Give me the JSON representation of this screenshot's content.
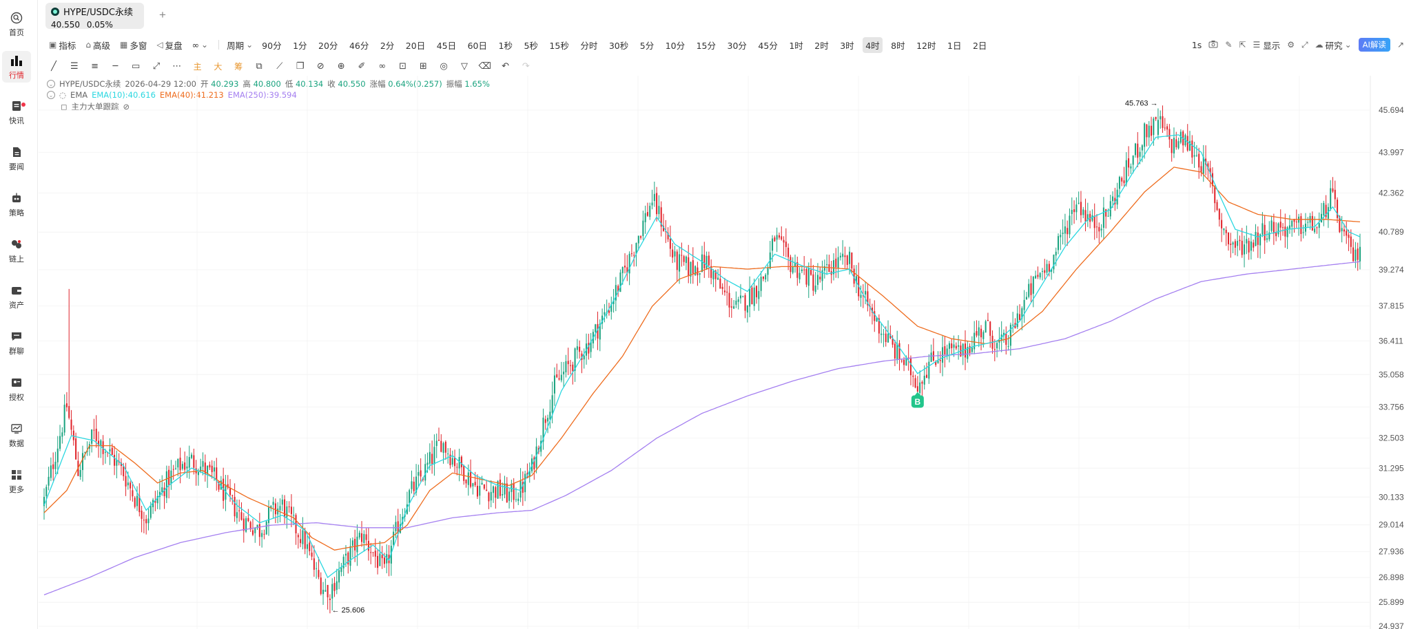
{
  "sidebar": {
    "items": [
      {
        "label": "首页",
        "icon": "search-home-icon"
      },
      {
        "label": "行情",
        "icon": "bar-chart-icon",
        "active": true
      },
      {
        "label": "快讯",
        "icon": "news-flash-icon",
        "badge": true
      },
      {
        "label": "要闻",
        "icon": "document-icon"
      },
      {
        "label": "策略",
        "icon": "robot-icon"
      },
      {
        "label": "链上",
        "icon": "onchain-icon"
      },
      {
        "label": "资产",
        "icon": "wallet-icon"
      },
      {
        "label": "群聊",
        "icon": "chat-icon"
      },
      {
        "label": "授权",
        "icon": "authorize-icon"
      },
      {
        "label": "数据",
        "icon": "data-monitor-icon"
      },
      {
        "label": "更多",
        "icon": "grid-more-icon"
      }
    ]
  },
  "tab": {
    "symbol": "HYPE/USDC永续",
    "price": "40.550",
    "change": "0.05%",
    "add": "+"
  },
  "toolbar": {
    "indicators": "指标",
    "advanced": "高级",
    "multi_window": "多窗",
    "replay": "复盘",
    "mode_icon": "∞",
    "period_label": "周期",
    "periods": [
      "90分",
      "1分",
      "20分",
      "46分",
      "2分",
      "20日",
      "45日",
      "60日",
      "1秒",
      "5秒",
      "15秒",
      "分时",
      "30秒",
      "5分",
      "10分",
      "15分",
      "30分",
      "45分",
      "1时",
      "2时",
      "3时",
      "4时",
      "8时",
      "12时",
      "1日",
      "2日"
    ],
    "active_period": "4时",
    "right": {
      "interval": "1s",
      "display": "显示",
      "research": "研究",
      "ai": "AI解读"
    }
  },
  "drawing_tools": {
    "tools": [
      "trend-line",
      "horizontal-lines",
      "parallel-channel",
      "horizontal-ray",
      "rectangle",
      "arrow-line",
      "more",
      "主",
      "大",
      "筹",
      "compare",
      "ruler-tool",
      "copy",
      "measure",
      "zoom-in",
      "brush",
      "link",
      "lock",
      "screenshot",
      "alert",
      "magnet",
      "filter",
      "trash",
      "undo",
      "redo"
    ],
    "labels": {
      "main": "主",
      "big": "大",
      "chips": "筹"
    }
  },
  "legend": {
    "symbol": "HYPE/USDC永续",
    "time": "2026-04-29 12:00",
    "open_label": "开",
    "open": "40.293",
    "high_label": "高",
    "high": "40.800",
    "low_label": "低",
    "low": "40.134",
    "close_label": "收",
    "close": "40.550",
    "change_label": "涨幅",
    "change": "0.64%(0.257)",
    "amp_label": "振幅",
    "amp": "1.65%",
    "ema_name": "EMA",
    "ema10": "EMA(10):40.616",
    "ema40": "EMA(40):41.213",
    "ema250": "EMA(250):39.594",
    "tracker": "主力大单跟踪"
  },
  "colors": {
    "up": "#1aa37f",
    "down": "#e0242b",
    "ema10": "#2ad7e0",
    "ema40": "#ee6c1e",
    "ema250": "#a47ff0",
    "buy_marker": "#22c58b"
  },
  "chart_data": {
    "type": "candlestick",
    "y_ticks": [
      "45.694",
      "43.997",
      "42.362",
      "40.789",
      "39.274",
      "37.815",
      "36.411",
      "35.058",
      "33.756",
      "32.503",
      "31.295",
      "30.133",
      "29.014",
      "27.936",
      "26.898",
      "25.899",
      "24.937"
    ],
    "y_range": [
      24.937,
      46.2
    ],
    "high_marker": "45.763 →",
    "low_marker": "← 25.606",
    "buy_label": "B",
    "close_anchors": [
      [
        0,
        30.0
      ],
      [
        10,
        33.8
      ],
      [
        15,
        31.2
      ],
      [
        22,
        32.7
      ],
      [
        28,
        32.0
      ],
      [
        35,
        31.1
      ],
      [
        40,
        30.1
      ],
      [
        45,
        29.3
      ],
      [
        50,
        30.1
      ],
      [
        55,
        30.9
      ],
      [
        60,
        31.4
      ],
      [
        65,
        31.6
      ],
      [
        70,
        31.3
      ],
      [
        75,
        30.9
      ],
      [
        80,
        30.2
      ],
      [
        88,
        29.2
      ],
      [
        95,
        28.8
      ],
      [
        100,
        29.5
      ],
      [
        105,
        29.8
      ],
      [
        110,
        29.0
      ],
      [
        115,
        28.3
      ],
      [
        120,
        27.0
      ],
      [
        125,
        26.2
      ],
      [
        130,
        27.1
      ],
      [
        135,
        27.9
      ],
      [
        140,
        28.6
      ],
      [
        145,
        27.9
      ],
      [
        150,
        27.1
      ],
      [
        155,
        28.7
      ],
      [
        160,
        30.1
      ],
      [
        168,
        31.2
      ],
      [
        175,
        32.4
      ],
      [
        180,
        31.7
      ],
      [
        185,
        31.2
      ],
      [
        190,
        30.6
      ],
      [
        195,
        30.4
      ],
      [
        200,
        30.4
      ],
      [
        205,
        30.2
      ],
      [
        210,
        30.4
      ],
      [
        215,
        31.3
      ],
      [
        220,
        33.1
      ],
      [
        225,
        34.6
      ],
      [
        232,
        35.5
      ],
      [
        240,
        36.3
      ],
      [
        248,
        37.6
      ],
      [
        255,
        39.0
      ],
      [
        262,
        40.7
      ],
      [
        268,
        42.1
      ],
      [
        272,
        41.3
      ],
      [
        278,
        39.6
      ],
      [
        285,
        39.3
      ],
      [
        292,
        39.6
      ],
      [
        298,
        38.5
      ],
      [
        305,
        37.7
      ],
      [
        312,
        38.3
      ],
      [
        318,
        39.1
      ],
      [
        322,
        40.6
      ],
      [
        328,
        39.6
      ],
      [
        335,
        39.1
      ],
      [
        340,
        38.7
      ],
      [
        348,
        39.5
      ],
      [
        355,
        39.6
      ],
      [
        360,
        38.3
      ],
      [
        368,
        37.0
      ],
      [
        375,
        36.0
      ],
      [
        382,
        35.2
      ],
      [
        385,
        34.7
      ],
      [
        390,
        35.5
      ],
      [
        395,
        35.9
      ],
      [
        400,
        36.0
      ],
      [
        405,
        35.9
      ],
      [
        410,
        36.6
      ],
      [
        415,
        37.0
      ],
      [
        420,
        36.2
      ],
      [
        425,
        36.4
      ],
      [
        430,
        37.6
      ],
      [
        438,
        39.0
      ],
      [
        445,
        39.8
      ],
      [
        450,
        40.9
      ],
      [
        455,
        42.1
      ],
      [
        462,
        41.1
      ],
      [
        468,
        41.4
      ],
      [
        474,
        42.7
      ],
      [
        480,
        43.8
      ],
      [
        486,
        44.9
      ],
      [
        492,
        45.1
      ],
      [
        497,
        44.3
      ],
      [
        502,
        44.5
      ],
      [
        508,
        43.9
      ],
      [
        514,
        42.9
      ],
      [
        518,
        41.4
      ],
      [
        522,
        40.4
      ],
      [
        526,
        40.2
      ],
      [
        532,
        40.4
      ],
      [
        538,
        40.9
      ],
      [
        545,
        41.0
      ],
      [
        550,
        40.9
      ],
      [
        556,
        41.1
      ],
      [
        562,
        41.0
      ],
      [
        567,
        42.3
      ],
      [
        570,
        41.4
      ],
      [
        574,
        40.3
      ],
      [
        578,
        39.7
      ],
      [
        580,
        40.4
      ]
    ],
    "ema10_anchors": [
      [
        0,
        29.8
      ],
      [
        12,
        32.6
      ],
      [
        22,
        32.4
      ],
      [
        35,
        31.4
      ],
      [
        45,
        29.6
      ],
      [
        55,
        30.6
      ],
      [
        65,
        31.3
      ],
      [
        75,
        30.9
      ],
      [
        85,
        29.8
      ],
      [
        95,
        29.1
      ],
      [
        105,
        29.4
      ],
      [
        115,
        28.8
      ],
      [
        125,
        26.9
      ],
      [
        135,
        27.6
      ],
      [
        145,
        28.2
      ],
      [
        152,
        27.6
      ],
      [
        160,
        29.7
      ],
      [
        170,
        31.4
      ],
      [
        180,
        31.8
      ],
      [
        190,
        31.0
      ],
      [
        200,
        30.6
      ],
      [
        210,
        30.4
      ],
      [
        218,
        32.0
      ],
      [
        228,
        34.4
      ],
      [
        240,
        36.2
      ],
      [
        252,
        38.2
      ],
      [
        262,
        40.1
      ],
      [
        270,
        41.4
      ],
      [
        278,
        40.3
      ],
      [
        290,
        39.6
      ],
      [
        300,
        38.9
      ],
      [
        310,
        38.4
      ],
      [
        322,
        39.9
      ],
      [
        335,
        39.4
      ],
      [
        345,
        39.1
      ],
      [
        355,
        39.3
      ],
      [
        365,
        37.6
      ],
      [
        375,
        36.4
      ],
      [
        385,
        35.1
      ],
      [
        395,
        35.7
      ],
      [
        410,
        36.2
      ],
      [
        420,
        36.4
      ],
      [
        430,
        37.2
      ],
      [
        440,
        38.7
      ],
      [
        450,
        40.2
      ],
      [
        460,
        41.3
      ],
      [
        470,
        41.7
      ],
      [
        480,
        43.2
      ],
      [
        490,
        44.6
      ],
      [
        500,
        44.7
      ],
      [
        510,
        44.0
      ],
      [
        518,
        42.3
      ],
      [
        525,
        40.9
      ],
      [
        535,
        40.6
      ],
      [
        548,
        40.9
      ],
      [
        560,
        41.0
      ],
      [
        568,
        41.8
      ],
      [
        575,
        40.8
      ],
      [
        580,
        40.6
      ]
    ],
    "ema40_anchors": [
      [
        0,
        29.5
      ],
      [
        10,
        30.4
      ],
      [
        20,
        32.2
      ],
      [
        30,
        32.2
      ],
      [
        40,
        31.5
      ],
      [
        50,
        30.7
      ],
      [
        60,
        31.1
      ],
      [
        70,
        31.2
      ],
      [
        80,
        30.6
      ],
      [
        90,
        30.1
      ],
      [
        100,
        29.7
      ],
      [
        110,
        29.3
      ],
      [
        118,
        28.5
      ],
      [
        128,
        28.0
      ],
      [
        140,
        28.2
      ],
      [
        150,
        28.3
      ],
      [
        160,
        29.0
      ],
      [
        170,
        30.4
      ],
      [
        180,
        31.1
      ],
      [
        195,
        30.8
      ],
      [
        205,
        30.6
      ],
      [
        215,
        31.0
      ],
      [
        228,
        32.5
      ],
      [
        242,
        34.3
      ],
      [
        255,
        35.8
      ],
      [
        268,
        37.8
      ],
      [
        280,
        38.9
      ],
      [
        295,
        39.4
      ],
      [
        310,
        39.3
      ],
      [
        325,
        39.4
      ],
      [
        340,
        39.4
      ],
      [
        355,
        39.3
      ],
      [
        370,
        38.2
      ],
      [
        385,
        37.0
      ],
      [
        400,
        36.5
      ],
      [
        415,
        36.3
      ],
      [
        425,
        36.5
      ],
      [
        440,
        37.6
      ],
      [
        455,
        39.3
      ],
      [
        470,
        40.8
      ],
      [
        485,
        42.4
      ],
      [
        498,
        43.4
      ],
      [
        510,
        43.2
      ],
      [
        522,
        42.0
      ],
      [
        535,
        41.5
      ],
      [
        550,
        41.3
      ],
      [
        565,
        41.3
      ],
      [
        580,
        41.2
      ]
    ],
    "ema250_anchors": [
      [
        0,
        26.2
      ],
      [
        20,
        26.9
      ],
      [
        40,
        27.7
      ],
      [
        60,
        28.3
      ],
      [
        80,
        28.7
      ],
      [
        100,
        29.0
      ],
      [
        120,
        29.1
      ],
      [
        140,
        28.9
      ],
      [
        160,
        28.9
      ],
      [
        180,
        29.3
      ],
      [
        200,
        29.5
      ],
      [
        215,
        29.6
      ],
      [
        230,
        30.2
      ],
      [
        250,
        31.2
      ],
      [
        270,
        32.5
      ],
      [
        290,
        33.5
      ],
      [
        310,
        34.2
      ],
      [
        330,
        34.8
      ],
      [
        350,
        35.3
      ],
      [
        370,
        35.6
      ],
      [
        390,
        35.8
      ],
      [
        410,
        35.9
      ],
      [
        430,
        36.1
      ],
      [
        450,
        36.5
      ],
      [
        470,
        37.2
      ],
      [
        490,
        38.1
      ],
      [
        510,
        38.8
      ],
      [
        530,
        39.1
      ],
      [
        550,
        39.3
      ],
      [
        570,
        39.5
      ],
      [
        580,
        39.6
      ]
    ],
    "high_index": 491,
    "low_index": 125,
    "buy_index": 385
  }
}
